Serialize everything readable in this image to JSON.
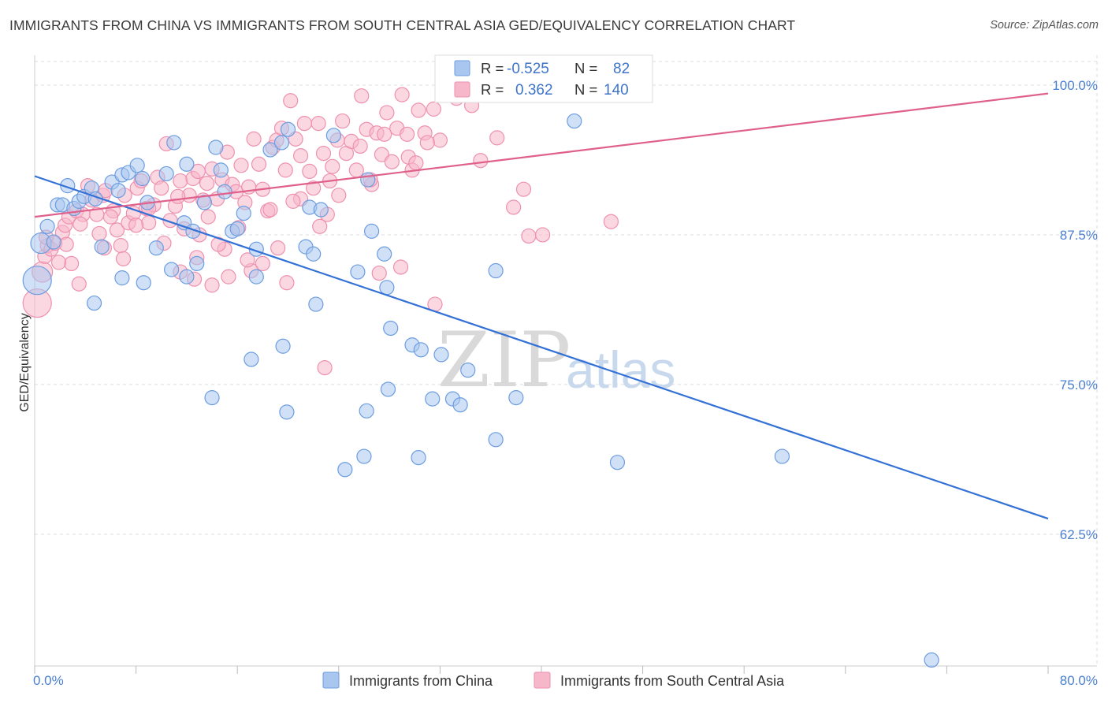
{
  "title": "IMMIGRANTS FROM CHINA VS IMMIGRANTS FROM SOUTH CENTRAL ASIA GED/EQUIVALENCY CORRELATION CHART",
  "source": "Source: ZipAtlas.com",
  "watermark": {
    "zip": "ZIP",
    "atlas": "atlas"
  },
  "colors": {
    "china_fill": "#a9c6ef",
    "china_stroke": "#6c9de0",
    "china_line": "#3371d6",
    "sca_fill": "#f7b7cb",
    "sca_stroke": "#ee91ae",
    "sca_line": "#e0608c",
    "tick_text": "#4a7fd1",
    "grid": "#dddddd"
  },
  "legend_box": {
    "rows": [
      {
        "r_label": "R =",
        "r_value": "-0.525",
        "n_label": "N =",
        "n_value": "82"
      },
      {
        "r_label": "R =",
        "r_value": "0.362",
        "n_label": "N =",
        "n_value": "140"
      }
    ]
  },
  "chart_data": {
    "type": "scatter",
    "title": "IMMIGRANTS FROM CHINA VS IMMIGRANTS FROM SOUTH CENTRAL ASIA GED/EQUIVALENCY CORRELATION CHART",
    "xlabel": "",
    "ylabel": "GED/Equivalency",
    "xlim": [
      0,
      80
    ],
    "ylim": [
      51.5,
      102.5
    ],
    "x_tick_labels": [
      "0.0%",
      "80.0%"
    ],
    "y_ticks": [
      62.5,
      75.0,
      87.5,
      100.0
    ],
    "y_tick_labels": [
      "62.5%",
      "75.0%",
      "87.5%",
      "100.0%"
    ],
    "grid": true,
    "legend_position": "bottom",
    "series": [
      {
        "name": "Immigrants from China",
        "R": -0.525,
        "N": 82,
        "trend": {
          "x": [
            0,
            80
          ],
          "y": [
            92.4,
            63.8
          ]
        },
        "points": [
          [
            0.2,
            83.7
          ],
          [
            0.5,
            86.8
          ],
          [
            1.0,
            88.2
          ],
          [
            1.5,
            86.9
          ],
          [
            1.8,
            90.0
          ],
          [
            2.2,
            90.0
          ],
          [
            2.6,
            91.6
          ],
          [
            3.1,
            89.7
          ],
          [
            3.5,
            90.3
          ],
          [
            3.9,
            90.7
          ],
          [
            4.5,
            91.4
          ],
          [
            4.8,
            90.5
          ],
          [
            5.3,
            86.5
          ],
          [
            6.1,
            91.9
          ],
          [
            6.6,
            91.2
          ],
          [
            6.9,
            92.5
          ],
          [
            7.4,
            92.7
          ],
          [
            8.1,
            93.3
          ],
          [
            8.5,
            92.2
          ],
          [
            8.9,
            90.2
          ],
          [
            9.6,
            86.4
          ],
          [
            10.4,
            92.6
          ],
          [
            11.0,
            95.2
          ],
          [
            11.8,
            88.5
          ],
          [
            12.0,
            93.4
          ],
          [
            12.5,
            87.8
          ],
          [
            12.8,
            85.1
          ],
          [
            13.4,
            90.2
          ],
          [
            14.3,
            94.8
          ],
          [
            14.7,
            92.9
          ],
          [
            15.0,
            91.1
          ],
          [
            15.6,
            87.8
          ],
          [
            16.0,
            88.0
          ],
          [
            16.5,
            89.3
          ],
          [
            17.5,
            86.3
          ],
          [
            17.5,
            84.0
          ],
          [
            18.6,
            94.6
          ],
          [
            19.5,
            95.2
          ],
          [
            20.0,
            96.3
          ],
          [
            21.4,
            86.5
          ],
          [
            21.7,
            89.8
          ],
          [
            22.0,
            85.9
          ],
          [
            22.2,
            81.7
          ],
          [
            22.6,
            89.6
          ],
          [
            23.6,
            95.8
          ],
          [
            25.5,
            84.4
          ],
          [
            26.3,
            92.1
          ],
          [
            26.6,
            87.8
          ],
          [
            27.6,
            85.9
          ],
          [
            27.8,
            83.1
          ],
          [
            28.1,
            79.7
          ],
          [
            29.8,
            78.3
          ],
          [
            30.5,
            77.9
          ],
          [
            32.1,
            77.5
          ],
          [
            33.0,
            73.8
          ],
          [
            33.6,
            73.3
          ],
          [
            34.2,
            76.2
          ],
          [
            36.4,
            70.4
          ],
          [
            36.4,
            84.5
          ],
          [
            38.0,
            73.9
          ],
          [
            4.7,
            81.8
          ],
          [
            6.9,
            83.9
          ],
          [
            8.6,
            83.5
          ],
          [
            10.8,
            84.6
          ],
          [
            12.0,
            84.0
          ],
          [
            14.0,
            73.9
          ],
          [
            17.1,
            77.1
          ],
          [
            19.6,
            78.2
          ],
          [
            19.9,
            72.7
          ],
          [
            26.2,
            72.8
          ],
          [
            27.9,
            74.6
          ],
          [
            30.3,
            68.9
          ],
          [
            31.4,
            73.8
          ],
          [
            24.5,
            67.9
          ],
          [
            26.0,
            69.0
          ],
          [
            37.6,
            100.0
          ],
          [
            34.4,
            100.1
          ],
          [
            35.6,
            100.1
          ],
          [
            42.6,
            97.0
          ],
          [
            46.0,
            68.5
          ],
          [
            59.0,
            69.0
          ],
          [
            70.8,
            52.0
          ]
        ]
      },
      {
        "name": "Immigrants from South Central Asia",
        "R": 0.362,
        "N": 140,
        "trend": {
          "x": [
            0,
            80
          ],
          "y": [
            89.0,
            99.3
          ]
        },
        "points": [
          [
            0.2,
            81.8
          ],
          [
            0.6,
            84.4
          ],
          [
            0.8,
            85.7
          ],
          [
            1.0,
            86.6
          ],
          [
            1.3,
            86.3
          ],
          [
            1.6,
            86.8
          ],
          [
            2.2,
            87.7
          ],
          [
            2.4,
            88.3
          ],
          [
            2.7,
            89.0
          ],
          [
            2.9,
            85.1
          ],
          [
            3.3,
            89.5
          ],
          [
            3.5,
            83.4
          ],
          [
            3.8,
            89.2
          ],
          [
            4.2,
            91.6
          ],
          [
            4.5,
            90.4
          ],
          [
            4.9,
            89.2
          ],
          [
            5.1,
            87.6
          ],
          [
            5.4,
            90.8
          ],
          [
            5.6,
            91.2
          ],
          [
            6.2,
            89.5
          ],
          [
            6.5,
            87.9
          ],
          [
            6.8,
            86.6
          ],
          [
            7.1,
            90.8
          ],
          [
            7.4,
            88.5
          ],
          [
            7.8,
            89.3
          ],
          [
            8.1,
            91.4
          ],
          [
            8.4,
            92.0
          ],
          [
            8.8,
            89.7
          ],
          [
            9.0,
            88.5
          ],
          [
            9.4,
            90.0
          ],
          [
            9.7,
            92.3
          ],
          [
            10.0,
            91.4
          ],
          [
            10.4,
            95.1
          ],
          [
            10.7,
            88.7
          ],
          [
            11.1,
            89.9
          ],
          [
            11.5,
            92.0
          ],
          [
            11.8,
            88.0
          ],
          [
            12.2,
            90.8
          ],
          [
            12.5,
            92.2
          ],
          [
            12.9,
            92.8
          ],
          [
            13.3,
            90.4
          ],
          [
            13.6,
            91.8
          ],
          [
            14.0,
            93.0
          ],
          [
            14.4,
            90.5
          ],
          [
            14.8,
            92.1
          ],
          [
            15.2,
            94.4
          ],
          [
            15.6,
            91.7
          ],
          [
            15.9,
            91.1
          ],
          [
            16.3,
            93.3
          ],
          [
            16.6,
            90.2
          ],
          [
            16.9,
            91.5
          ],
          [
            17.3,
            95.5
          ],
          [
            17.7,
            93.4
          ],
          [
            18.0,
            91.3
          ],
          [
            18.4,
            89.5
          ],
          [
            18.8,
            94.8
          ],
          [
            19.1,
            95.4
          ],
          [
            19.5,
            96.4
          ],
          [
            19.8,
            92.9
          ],
          [
            20.2,
            98.7
          ],
          [
            20.6,
            95.5
          ],
          [
            21.0,
            94.1
          ],
          [
            21.3,
            96.8
          ],
          [
            21.7,
            92.8
          ],
          [
            22.0,
            91.4
          ],
          [
            22.4,
            96.8
          ],
          [
            22.8,
            94.3
          ],
          [
            23.1,
            89.2
          ],
          [
            23.5,
            93.2
          ],
          [
            23.9,
            95.4
          ],
          [
            24.3,
            97.0
          ],
          [
            24.6,
            94.3
          ],
          [
            25.0,
            95.3
          ],
          [
            25.4,
            92.9
          ],
          [
            25.8,
            99.1
          ],
          [
            26.2,
            96.3
          ],
          [
            26.6,
            91.7
          ],
          [
            27.0,
            96.0
          ],
          [
            27.4,
            94.2
          ],
          [
            27.8,
            97.7
          ],
          [
            28.2,
            93.6
          ],
          [
            28.6,
            96.4
          ],
          [
            29.0,
            99.2
          ],
          [
            29.4,
            95.9
          ],
          [
            29.8,
            92.9
          ],
          [
            30.3,
            97.9
          ],
          [
            30.8,
            96.0
          ],
          [
            31.5,
            98.0
          ],
          [
            32.0,
            95.4
          ],
          [
            33.3,
            98.9
          ],
          [
            34.5,
            98.3
          ],
          [
            35.2,
            93.7
          ],
          [
            36.5,
            95.6
          ],
          [
            37.8,
            89.8
          ],
          [
            38.6,
            91.3
          ],
          [
            39.0,
            87.4
          ],
          [
            40.1,
            87.5
          ],
          [
            0.9,
            87.3
          ],
          [
            1.9,
            85.2
          ],
          [
            2.5,
            86.7
          ],
          [
            5.5,
            86.4
          ],
          [
            8.0,
            88.3
          ],
          [
            11.5,
            84.4
          ],
          [
            12.6,
            83.8
          ],
          [
            14.0,
            83.3
          ],
          [
            15.3,
            84.0
          ],
          [
            17.1,
            84.5
          ],
          [
            19.9,
            83.5
          ],
          [
            22.9,
            76.4
          ],
          [
            27.2,
            84.3
          ],
          [
            28.9,
            84.8
          ],
          [
            31.6,
            81.7
          ],
          [
            45.5,
            88.6
          ],
          [
            9.0,
            89.7
          ],
          [
            13.0,
            87.5
          ],
          [
            15.0,
            86.3
          ],
          [
            18.0,
            85.1
          ],
          [
            21.0,
            90.5
          ],
          [
            24.0,
            90.8
          ],
          [
            26.5,
            92.1
          ],
          [
            29.5,
            94.0
          ],
          [
            31.0,
            95.2
          ],
          [
            12.8,
            85.6
          ],
          [
            14.5,
            86.7
          ],
          [
            16.8,
            85.4
          ],
          [
            19.2,
            86.4
          ],
          [
            22.5,
            88.2
          ],
          [
            3.6,
            88.4
          ],
          [
            6.0,
            89.0
          ],
          [
            7.0,
            85.5
          ],
          [
            10.2,
            86.8
          ],
          [
            11.3,
            90.7
          ],
          [
            13.7,
            89.0
          ],
          [
            16.1,
            88.1
          ],
          [
            18.6,
            89.6
          ],
          [
            20.4,
            90.3
          ],
          [
            23.3,
            92.0
          ],
          [
            25.7,
            94.9
          ],
          [
            27.6,
            95.9
          ],
          [
            30.1,
            93.5
          ]
        ]
      }
    ]
  }
}
